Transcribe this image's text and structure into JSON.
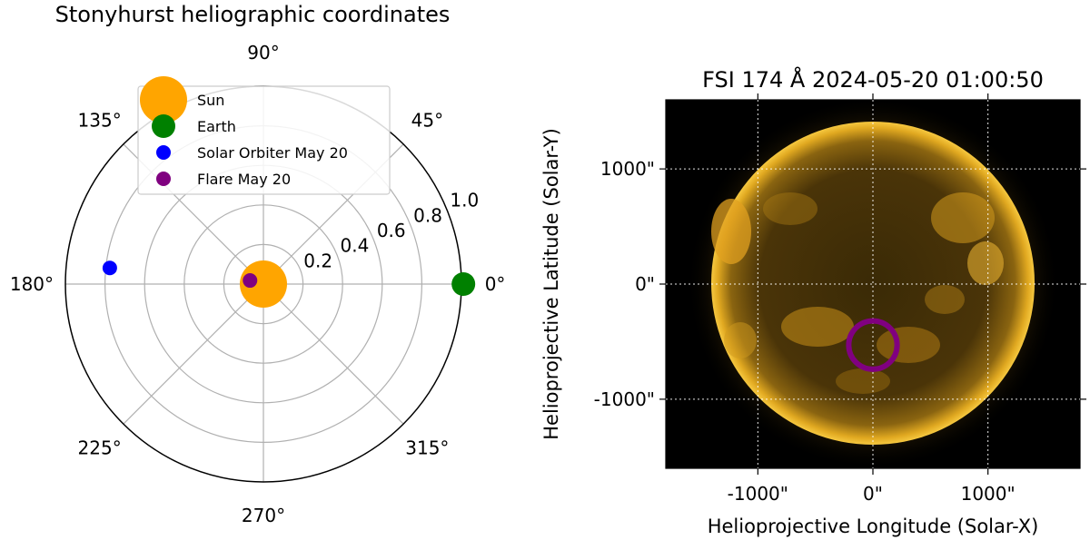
{
  "chart_data": [
    {
      "type": "scatter",
      "projection": "polar",
      "title": "Stonyhurst heliographic coordinates",
      "theta_tick_labels": [
        "0°",
        "45°",
        "90°",
        "135°",
        "180°",
        "225°",
        "270°",
        "315°"
      ],
      "r_tick_labels": [
        "0.2",
        "0.4",
        "0.6",
        "0.8",
        "1.0"
      ],
      "r_ticks": [
        0.2,
        0.4,
        0.6,
        0.8,
        1.0
      ],
      "r_max": 1.0,
      "grid": true,
      "legend_location": "top",
      "series": [
        {
          "name": "Sun",
          "theta_deg": 0,
          "r": 0.0,
          "color": "#ffa500",
          "marker": "large"
        },
        {
          "name": "Earth",
          "theta_deg": 0,
          "r": 1.01,
          "color": "#008000",
          "marker": "medium"
        },
        {
          "name": "Solar Orbiter May 20",
          "theta_deg": 174,
          "r": 0.78,
          "color": "#0000ff",
          "marker": "small"
        },
        {
          "name": "Flare May 20",
          "theta_deg": 165,
          "r": 0.07,
          "color": "#800080",
          "marker": "small"
        }
      ]
    },
    {
      "type": "image",
      "title": "FSI 174 Å 2024-05-20 01:00:50",
      "xlabel": "Helioprojective Longitude (Solar-X)",
      "ylabel": "Helioprojective Latitude (Solar-Y)",
      "x_tick_labels": [
        "-1000\"",
        "0\"",
        "1000\""
      ],
      "x_ticks": [
        -1000,
        0,
        1000
      ],
      "y_tick_labels": [
        "1000\"",
        "0\"",
        "-1000\""
      ],
      "y_ticks": [
        1000,
        0,
        -1000
      ],
      "xlim": [
        -1800,
        1800
      ],
      "ylim": [
        -1600,
        1600
      ],
      "grid": true,
      "colormap": "solar orbiter fsi 174 (gold)",
      "annotations": [
        {
          "shape": "circle",
          "center_x": 0,
          "center_y": -530,
          "radius": 210,
          "color": "#800080"
        }
      ]
    }
  ]
}
